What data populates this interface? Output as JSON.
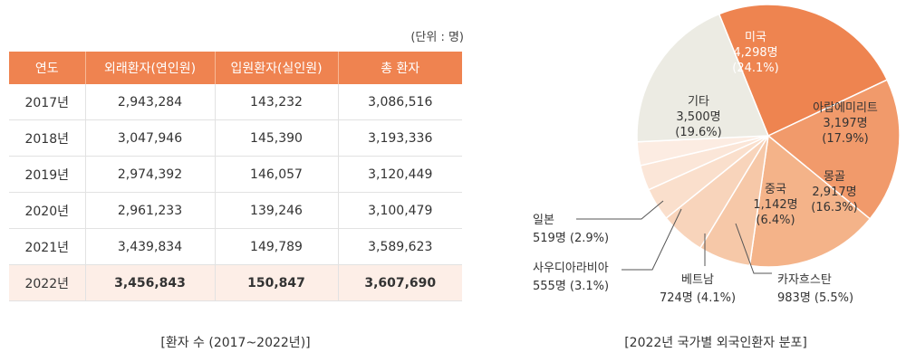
{
  "table": {
    "unit": "(단위 : 명)",
    "headers": [
      "연도",
      "외래환자(연인원)",
      "입원환자(실인원)",
      "총 환자"
    ],
    "rows": [
      [
        "2017년",
        "2,943,284",
        "143,232",
        "3,086,516"
      ],
      [
        "2018년",
        "3,047,946",
        "145,390",
        "3,193,336"
      ],
      [
        "2019년",
        "2,974,392",
        "146,057",
        "3,120,449"
      ],
      [
        "2020년",
        "2,961,233",
        "139,246",
        "3,100,479"
      ],
      [
        "2021년",
        "3,439,834",
        "149,789",
        "3,589,623"
      ],
      [
        "2022년",
        "3,456,843",
        "150,847",
        "3,607,690"
      ]
    ],
    "highlight_row": 5,
    "caption": "[환자 수 (2017~2022년)]"
  },
  "chart_data": {
    "type": "pie",
    "title": "[2022년 국가별 외국인환자 분포]",
    "slices": [
      {
        "name": "미국",
        "value": 4298,
        "value_label": "4,298명",
        "pct": 24.1,
        "pct_label": "(24.1%)",
        "color": "#ee8450",
        "text_color": "#ffffff"
      },
      {
        "name": "아랍에미리트",
        "value": 3197,
        "value_label": "3,197명",
        "pct": 17.9,
        "pct_label": "(17.9%)",
        "color": "#f19a6b",
        "text_color": "#333333"
      },
      {
        "name": "몽골",
        "value": 2917,
        "value_label": "2,917명",
        "pct": 16.3,
        "pct_label": "(16.3%)",
        "color": "#f4b389",
        "text_color": "#333333"
      },
      {
        "name": "중국",
        "value": 1142,
        "value_label": "1,142명",
        "pct": 6.4,
        "pct_label": "(6.4%)",
        "color": "#f6c8a8",
        "text_color": "#333333"
      },
      {
        "name": "카자흐스탄",
        "value": 983,
        "value_label": "983명",
        "pct": 5.5,
        "pct_label": "(5.5%)",
        "color": "#f8d4bb",
        "text_color": "#333333"
      },
      {
        "name": "베트남",
        "value": 724,
        "value_label": "724명",
        "pct": 4.1,
        "pct_label": "(4.1%)",
        "color": "#fadfcc",
        "text_color": "#333333"
      },
      {
        "name": "사우디아라비아",
        "value": 555,
        "value_label": "555명",
        "pct": 3.1,
        "pct_label": "(3.1%)",
        "color": "#fbe6d8",
        "text_color": "#333333"
      },
      {
        "name": "일본",
        "value": 519,
        "value_label": "519명",
        "pct": 2.9,
        "pct_label": "(2.9%)",
        "color": "#fcece2",
        "text_color": "#333333"
      },
      {
        "name": "기타",
        "value": 3500,
        "value_label": "3,500명",
        "pct": 19.6,
        "pct_label": "(19.6%)",
        "color": "#ecebe3",
        "text_color": "#333333"
      }
    ]
  }
}
